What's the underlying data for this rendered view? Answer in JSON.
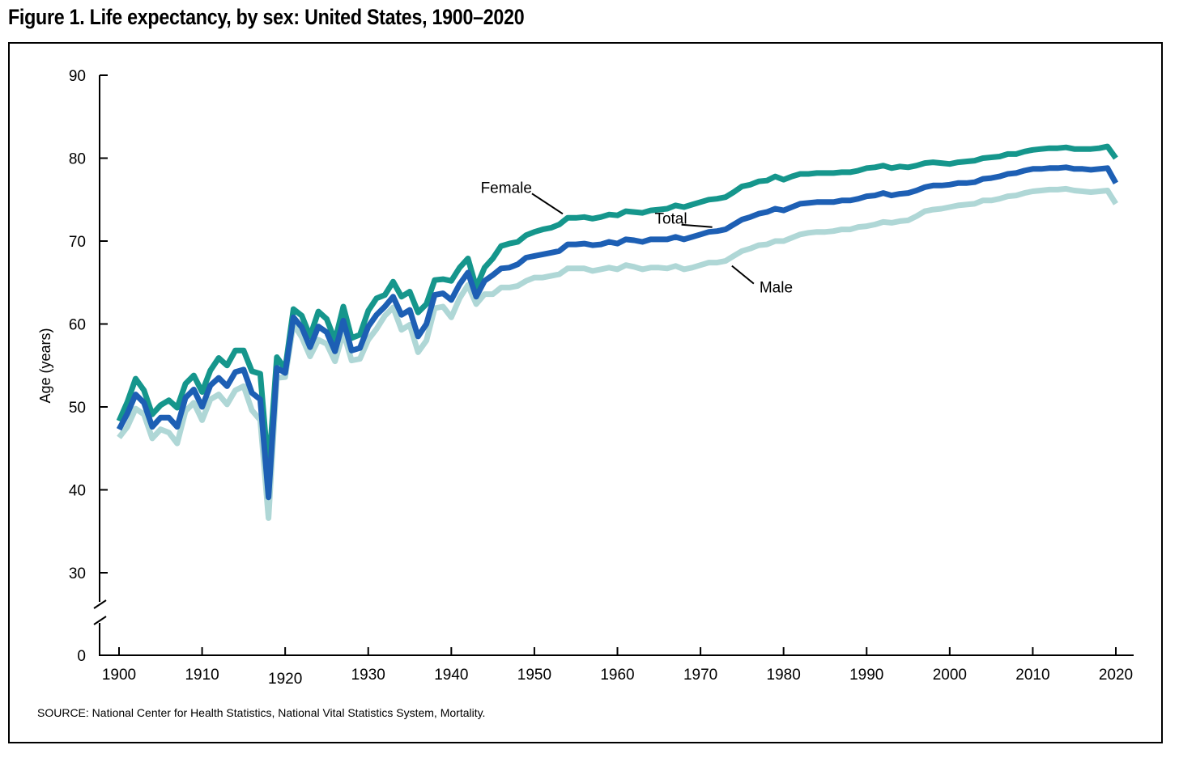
{
  "title": "Figure 1. Life expectancy, by sex: United States, 1900–2020",
  "source_note": "SOURCE: National Center for Health Statistics, National Vital Statistics System, Mortality.",
  "colors": {
    "female": "#15968c",
    "total": "#1d5fb4",
    "male": "#afd7d6",
    "axis": "#000000"
  },
  "chart_data": {
    "type": "line",
    "title": "Figure 1. Life expectancy, by sex: United States, 1900–2020",
    "xlabel": "",
    "ylabel": "Age (years)",
    "xlim": [
      1900,
      2020
    ],
    "ylim": [
      0,
      90
    ],
    "axis_break": [
      0,
      30
    ],
    "x_ticks": [
      1900,
      1910,
      1920,
      1930,
      1940,
      1950,
      1960,
      1970,
      1980,
      1990,
      2000,
      2010,
      2020
    ],
    "y_ticks": [
      0,
      30,
      40,
      50,
      60,
      70,
      80,
      90
    ],
    "grid": false,
    "legend": "inline labels",
    "x_start": 1900,
    "x_step": 1,
    "series": [
      {
        "name": "Female",
        "color": "#15968c",
        "values": [
          48.3,
          50.6,
          53.4,
          52.0,
          49.1,
          50.2,
          50.8,
          49.9,
          52.8,
          53.8,
          51.8,
          54.4,
          55.9,
          55.0,
          56.8,
          56.8,
          54.3,
          54.0,
          42.2,
          56.0,
          54.6,
          61.8,
          61.0,
          58.5,
          61.5,
          60.6,
          58.0,
          62.1,
          58.3,
          58.7,
          61.6,
          63.1,
          63.5,
          65.1,
          63.3,
          63.9,
          61.4,
          62.4,
          65.3,
          65.4,
          65.2,
          66.8,
          67.9,
          64.4,
          66.8,
          67.9,
          69.4,
          69.7,
          69.9,
          70.7,
          71.1,
          71.4,
          71.6,
          72.0,
          72.8,
          72.8,
          72.9,
          72.7,
          72.9,
          73.2,
          73.1,
          73.6,
          73.5,
          73.4,
          73.7,
          73.8,
          73.9,
          74.3,
          74.1,
          74.4,
          74.7,
          75.0,
          75.1,
          75.3,
          75.9,
          76.6,
          76.8,
          77.2,
          77.3,
          77.8,
          77.4,
          77.8,
          78.1,
          78.1,
          78.2,
          78.2,
          78.2,
          78.3,
          78.3,
          78.5,
          78.8,
          78.9,
          79.1,
          78.8,
          79.0,
          78.9,
          79.1,
          79.4,
          79.5,
          79.4,
          79.3,
          79.5,
          79.6,
          79.7,
          80.0,
          80.1,
          80.2,
          80.5,
          80.5,
          80.8,
          81.0,
          81.1,
          81.2,
          81.2,
          81.3,
          81.1,
          81.1,
          81.1,
          81.2,
          81.4,
          80.0
        ]
      },
      {
        "name": "Total",
        "color": "#1d5fb4",
        "values": [
          47.3,
          49.2,
          51.5,
          50.5,
          47.6,
          48.7,
          48.7,
          47.6,
          51.1,
          52.1,
          50.0,
          52.6,
          53.5,
          52.5,
          54.2,
          54.5,
          51.7,
          50.9,
          39.1,
          54.7,
          54.1,
          60.8,
          59.6,
          57.2,
          59.7,
          59.0,
          56.7,
          60.4,
          56.8,
          57.1,
          59.7,
          61.1,
          62.1,
          63.3,
          61.1,
          61.7,
          58.5,
          60.0,
          63.5,
          63.7,
          62.9,
          64.8,
          66.2,
          63.3,
          65.2,
          65.9,
          66.7,
          66.8,
          67.2,
          68.0,
          68.2,
          68.4,
          68.6,
          68.8,
          69.6,
          69.6,
          69.7,
          69.5,
          69.6,
          69.9,
          69.7,
          70.2,
          70.1,
          69.9,
          70.2,
          70.2,
          70.2,
          70.5,
          70.2,
          70.5,
          70.8,
          71.1,
          71.2,
          71.4,
          72.0,
          72.6,
          72.9,
          73.3,
          73.5,
          73.9,
          73.7,
          74.1,
          74.5,
          74.6,
          74.7,
          74.7,
          74.7,
          74.9,
          74.9,
          75.1,
          75.4,
          75.5,
          75.8,
          75.5,
          75.7,
          75.8,
          76.1,
          76.5,
          76.7,
          76.7,
          76.8,
          77.0,
          77.0,
          77.1,
          77.5,
          77.6,
          77.8,
          78.1,
          78.2,
          78.5,
          78.7,
          78.7,
          78.8,
          78.8,
          78.9,
          78.7,
          78.7,
          78.6,
          78.7,
          78.8,
          77.0
        ]
      },
      {
        "name": "Male",
        "color": "#afd7d6",
        "values": [
          46.3,
          47.6,
          49.8,
          49.1,
          46.2,
          47.3,
          46.9,
          45.6,
          49.5,
          50.5,
          48.4,
          50.9,
          51.5,
          50.3,
          52.0,
          52.5,
          49.6,
          48.4,
          36.6,
          53.5,
          53.6,
          60.0,
          58.4,
          56.1,
          58.1,
          57.6,
          55.5,
          59.0,
          55.6,
          55.8,
          58.1,
          59.4,
          61.0,
          62.0,
          59.3,
          59.9,
          56.6,
          58.0,
          61.9,
          62.1,
          60.8,
          63.1,
          64.7,
          62.4,
          63.6,
          63.6,
          64.4,
          64.4,
          64.6,
          65.2,
          65.6,
          65.6,
          65.8,
          66.0,
          66.7,
          66.7,
          66.7,
          66.4,
          66.6,
          66.8,
          66.6,
          67.1,
          66.9,
          66.6,
          66.8,
          66.8,
          66.7,
          67.0,
          66.6,
          66.8,
          67.1,
          67.4,
          67.4,
          67.6,
          68.2,
          68.8,
          69.1,
          69.5,
          69.6,
          70.0,
          70.0,
          70.4,
          70.8,
          71.0,
          71.1,
          71.1,
          71.2,
          71.4,
          71.4,
          71.7,
          71.8,
          72.0,
          72.3,
          72.2,
          72.4,
          72.5,
          73.0,
          73.6,
          73.8,
          73.9,
          74.1,
          74.3,
          74.4,
          74.5,
          74.9,
          74.9,
          75.1,
          75.4,
          75.5,
          75.8,
          76.0,
          76.1,
          76.2,
          76.2,
          76.3,
          76.1,
          76.0,
          75.9,
          76.0,
          76.1,
          74.5
        ]
      }
    ],
    "annotations": [
      {
        "text": "Female",
        "series": "Female",
        "x": 1954
      },
      {
        "text": "Total",
        "series": "Total",
        "x": 1972
      },
      {
        "text": "Male",
        "series": "Male",
        "x": 1973
      }
    ]
  }
}
